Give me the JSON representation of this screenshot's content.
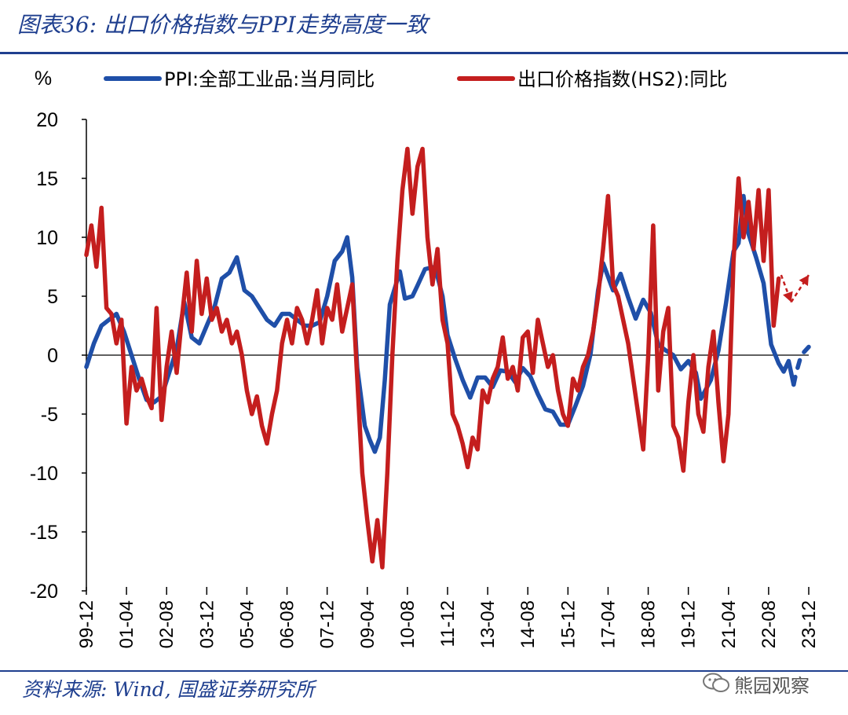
{
  "title": "图表36: 出口价格指数与PPI走势高度一致",
  "source": "资料来源: Wind, 国盛证券研究所",
  "watermark": "熊园观察",
  "chart_data": {
    "type": "line",
    "ylabel": "%",
    "ylim": [
      -20,
      20
    ],
    "yticks": [
      20,
      15,
      10,
      5,
      0,
      -5,
      -10,
      -15,
      -20
    ],
    "xlim": [
      "1999-12",
      "2023-12"
    ],
    "xticks": [
      "99-12",
      "01-04",
      "02-08",
      "03-12",
      "05-04",
      "06-08",
      "07-12",
      "09-04",
      "10-08",
      "11-12",
      "13-04",
      "14-08",
      "15-12",
      "17-04",
      "18-08",
      "19-12",
      "21-04",
      "22-08",
      "23-12"
    ],
    "series": [
      {
        "name": "PPI:全部工业品:当月同比",
        "color": "#1f4fa8",
        "points": [
          [
            "1999-12",
            -1.0
          ],
          [
            "2000-03",
            1.0
          ],
          [
            "2000-06",
            2.5
          ],
          [
            "2000-09",
            3.0
          ],
          [
            "2000-12",
            3.5
          ],
          [
            "2001-03",
            2.0
          ],
          [
            "2001-06",
            0.0
          ],
          [
            "2001-09",
            -2.0
          ],
          [
            "2001-12",
            -3.8
          ],
          [
            "2002-03",
            -4.0
          ],
          [
            "2002-06",
            -3.5
          ],
          [
            "2002-09",
            -1.5
          ],
          [
            "2002-12",
            0.5
          ],
          [
            "2003-03",
            4.5
          ],
          [
            "2003-06",
            1.5
          ],
          [
            "2003-09",
            1.0
          ],
          [
            "2003-12",
            2.5
          ],
          [
            "2004-03",
            4.0
          ],
          [
            "2004-06",
            6.5
          ],
          [
            "2004-09",
            7.0
          ],
          [
            "2004-12",
            8.3
          ],
          [
            "2005-03",
            5.5
          ],
          [
            "2005-06",
            5.0
          ],
          [
            "2005-09",
            4.0
          ],
          [
            "2005-12",
            3.0
          ],
          [
            "2006-03",
            2.5
          ],
          [
            "2006-06",
            3.5
          ],
          [
            "2006-09",
            3.5
          ],
          [
            "2006-12",
            3.0
          ],
          [
            "2007-03",
            2.5
          ],
          [
            "2007-06",
            2.5
          ],
          [
            "2007-09",
            2.8
          ],
          [
            "2007-12",
            5.0
          ],
          [
            "2008-03",
            8.0
          ],
          [
            "2008-06",
            8.8
          ],
          [
            "2008-08",
            10.0
          ],
          [
            "2008-10",
            6.6
          ],
          [
            "2008-12",
            -1.1
          ],
          [
            "2009-03",
            -6.0
          ],
          [
            "2009-05",
            -7.2
          ],
          [
            "2009-07",
            -8.2
          ],
          [
            "2009-09",
            -7.0
          ],
          [
            "2009-11",
            -2.1
          ],
          [
            "2010-01",
            4.3
          ],
          [
            "2010-05",
            7.1
          ],
          [
            "2010-07",
            4.8
          ],
          [
            "2010-10",
            5.0
          ],
          [
            "2010-12",
            5.9
          ],
          [
            "2011-03",
            7.3
          ],
          [
            "2011-07",
            7.5
          ],
          [
            "2011-10",
            5.0
          ],
          [
            "2011-12",
            1.7
          ],
          [
            "2012-03",
            -0.3
          ],
          [
            "2012-06",
            -2.1
          ],
          [
            "2012-09",
            -3.6
          ],
          [
            "2012-12",
            -1.9
          ],
          [
            "2013-03",
            -1.9
          ],
          [
            "2013-06",
            -2.7
          ],
          [
            "2013-09",
            -1.3
          ],
          [
            "2013-12",
            -1.4
          ],
          [
            "2014-03",
            -2.3
          ],
          [
            "2014-06",
            -1.1
          ],
          [
            "2014-09",
            -1.8
          ],
          [
            "2014-12",
            -3.3
          ],
          [
            "2015-03",
            -4.6
          ],
          [
            "2015-06",
            -4.8
          ],
          [
            "2015-09",
            -5.9
          ],
          [
            "2015-12",
            -5.9
          ],
          [
            "2016-03",
            -4.3
          ],
          [
            "2016-06",
            -2.6
          ],
          [
            "2016-09",
            0.1
          ],
          [
            "2016-12",
            5.5
          ],
          [
            "2017-02",
            7.8
          ],
          [
            "2017-06",
            5.5
          ],
          [
            "2017-09",
            6.9
          ],
          [
            "2017-12",
            4.9
          ],
          [
            "2018-03",
            3.1
          ],
          [
            "2018-06",
            4.7
          ],
          [
            "2018-09",
            3.6
          ],
          [
            "2018-12",
            0.9
          ],
          [
            "2019-03",
            0.4
          ],
          [
            "2019-06",
            0.0
          ],
          [
            "2019-09",
            -1.2
          ],
          [
            "2019-12",
            -0.5
          ],
          [
            "2020-03",
            -1.5
          ],
          [
            "2020-05",
            -3.7
          ],
          [
            "2020-09",
            -2.1
          ],
          [
            "2020-12",
            0.4
          ],
          [
            "2021-03",
            4.4
          ],
          [
            "2021-06",
            8.8
          ],
          [
            "2021-08",
            9.5
          ],
          [
            "2021-10",
            13.5
          ],
          [
            "2021-12",
            10.3
          ],
          [
            "2022-03",
            8.3
          ],
          [
            "2022-06",
            6.1
          ],
          [
            "2022-09",
            0.9
          ],
          [
            "2022-12",
            -0.7
          ],
          [
            "2023-02",
            -1.4
          ],
          [
            "2023-04",
            -0.5
          ],
          [
            "2023-06",
            -2.5
          ]
        ],
        "forecast_points": [
          [
            "2023-07",
            -1.5
          ],
          [
            "2023-09",
            0.0
          ],
          [
            "2023-12",
            0.7
          ]
        ]
      },
      {
        "name": "出口价格指数(HS2):同比",
        "color": "#c41e1e",
        "points": [
          [
            "1999-12",
            8.5
          ],
          [
            "2000-02",
            11.0
          ],
          [
            "2000-04",
            7.5
          ],
          [
            "2000-06",
            12.5
          ],
          [
            "2000-08",
            4.0
          ],
          [
            "2000-10",
            3.5
          ],
          [
            "2000-12",
            1.0
          ],
          [
            "2001-02",
            3.0
          ],
          [
            "2001-04",
            -5.8
          ],
          [
            "2001-06",
            -1.0
          ],
          [
            "2001-08",
            -3.0
          ],
          [
            "2001-10",
            -2.0
          ],
          [
            "2001-12",
            -3.5
          ],
          [
            "2002-02",
            -4.5
          ],
          [
            "2002-04",
            4.0
          ],
          [
            "2002-06",
            -5.5
          ],
          [
            "2002-08",
            -1.0
          ],
          [
            "2002-10",
            2.0
          ],
          [
            "2002-12",
            -1.5
          ],
          [
            "2003-02",
            3.0
          ],
          [
            "2003-04",
            7.0
          ],
          [
            "2003-06",
            2.0
          ],
          [
            "2003-08",
            8.0
          ],
          [
            "2003-10",
            3.5
          ],
          [
            "2003-12",
            6.5
          ],
          [
            "2004-02",
            3.0
          ],
          [
            "2004-04",
            4.0
          ],
          [
            "2004-06",
            2.0
          ],
          [
            "2004-08",
            3.0
          ],
          [
            "2004-10",
            1.0
          ],
          [
            "2004-12",
            2.0
          ],
          [
            "2005-02",
            0.0
          ],
          [
            "2005-04",
            -3.0
          ],
          [
            "2005-06",
            -5.0
          ],
          [
            "2005-08",
            -3.5
          ],
          [
            "2005-10",
            -6.0
          ],
          [
            "2005-12",
            -7.5
          ],
          [
            "2006-02",
            -5.0
          ],
          [
            "2006-04",
            -3.0
          ],
          [
            "2006-06",
            1.0
          ],
          [
            "2006-08",
            3.0
          ],
          [
            "2006-10",
            1.0
          ],
          [
            "2006-12",
            4.0
          ],
          [
            "2007-02",
            3.0
          ],
          [
            "2007-04",
            1.0
          ],
          [
            "2007-06",
            3.0
          ],
          [
            "2007-08",
            5.5
          ],
          [
            "2007-10",
            1.0
          ],
          [
            "2007-12",
            4.0
          ],
          [
            "2008-02",
            3.0
          ],
          [
            "2008-04",
            6.0
          ],
          [
            "2008-06",
            2.0
          ],
          [
            "2008-08",
            4.0
          ],
          [
            "2008-10",
            6.0
          ],
          [
            "2008-12",
            -2.0
          ],
          [
            "2009-02",
            -10.0
          ],
          [
            "2009-04",
            -14.0
          ],
          [
            "2009-06",
            -17.5
          ],
          [
            "2009-08",
            -14.0
          ],
          [
            "2009-10",
            -18.0
          ],
          [
            "2009-12",
            -10.0
          ],
          [
            "2010-02",
            0.0
          ],
          [
            "2010-04",
            8.0
          ],
          [
            "2010-06",
            14.0
          ],
          [
            "2010-08",
            17.5
          ],
          [
            "2010-10",
            12.0
          ],
          [
            "2010-12",
            16.0
          ],
          [
            "2011-02",
            17.5
          ],
          [
            "2011-04",
            10.0
          ],
          [
            "2011-06",
            6.0
          ],
          [
            "2011-08",
            9.0
          ],
          [
            "2011-10",
            3.0
          ],
          [
            "2011-12",
            1.0
          ],
          [
            "2012-02",
            -5.0
          ],
          [
            "2012-04",
            -6.0
          ],
          [
            "2012-06",
            -7.5
          ],
          [
            "2012-08",
            -9.5
          ],
          [
            "2012-10",
            -7.0
          ],
          [
            "2012-12",
            -8.0
          ],
          [
            "2013-02",
            -3.0
          ],
          [
            "2013-04",
            -4.0
          ],
          [
            "2013-06",
            -2.0
          ],
          [
            "2013-08",
            -1.0
          ],
          [
            "2013-10",
            1.5
          ],
          [
            "2013-12",
            -2.0
          ],
          [
            "2014-02",
            -1.0
          ],
          [
            "2014-04",
            -3.0
          ],
          [
            "2014-06",
            1.5
          ],
          [
            "2014-08",
            2.0
          ],
          [
            "2014-10",
            -1.5
          ],
          [
            "2014-12",
            3.0
          ],
          [
            "2015-02",
            1.0
          ],
          [
            "2015-04",
            -1.0
          ],
          [
            "2015-06",
            0.0
          ],
          [
            "2015-08",
            -3.0
          ],
          [
            "2015-10",
            -5.0
          ],
          [
            "2015-12",
            -6.0
          ],
          [
            "2016-02",
            -2.0
          ],
          [
            "2016-04",
            -3.0
          ],
          [
            "2016-06",
            -1.0
          ],
          [
            "2016-08",
            0.0
          ],
          [
            "2016-10",
            2.0
          ],
          [
            "2016-12",
            5.0
          ],
          [
            "2017-02",
            9.0
          ],
          [
            "2017-04",
            13.5
          ],
          [
            "2017-06",
            6.0
          ],
          [
            "2017-08",
            5.0
          ],
          [
            "2017-10",
            3.0
          ],
          [
            "2017-12",
            1.0
          ],
          [
            "2018-02",
            -2.0
          ],
          [
            "2018-04",
            -5.0
          ],
          [
            "2018-06",
            -8.0
          ],
          [
            "2018-08",
            0.0
          ],
          [
            "2018-10",
            11.0
          ],
          [
            "2018-12",
            -3.0
          ],
          [
            "2019-02",
            2.0
          ],
          [
            "2019-04",
            4.0
          ],
          [
            "2019-06",
            -6.0
          ],
          [
            "2019-08",
            -7.0
          ],
          [
            "2019-10",
            -9.8
          ],
          [
            "2019-12",
            -4.0
          ],
          [
            "2020-02",
            0.0
          ],
          [
            "2020-04",
            -5.0
          ],
          [
            "2020-06",
            -6.5
          ],
          [
            "2020-08",
            -1.0
          ],
          [
            "2020-10",
            2.0
          ],
          [
            "2020-12",
            -4.0
          ],
          [
            "2021-02",
            -9.0
          ],
          [
            "2021-04",
            -5.0
          ],
          [
            "2021-06",
            8.0
          ],
          [
            "2021-08",
            15.0
          ],
          [
            "2021-10",
            10.0
          ],
          [
            "2021-12",
            13.0
          ],
          [
            "2022-02",
            9.0
          ],
          [
            "2022-04",
            14.0
          ],
          [
            "2022-06",
            8.0
          ],
          [
            "2022-08",
            14.0
          ],
          [
            "2022-10",
            2.5
          ],
          [
            "2022-12",
            6.5
          ]
        ]
      }
    ],
    "annotations": [
      {
        "type": "forecast-arrow",
        "color": "#c41e1e",
        "from": [
          "2023-01",
          6.8
        ],
        "to": [
          "2023-05",
          4.5
        ]
      },
      {
        "type": "forecast-arrow",
        "color": "#c41e1e",
        "from": [
          "2023-05",
          4.5
        ],
        "to": [
          "2023-12",
          6.8
        ]
      }
    ]
  }
}
